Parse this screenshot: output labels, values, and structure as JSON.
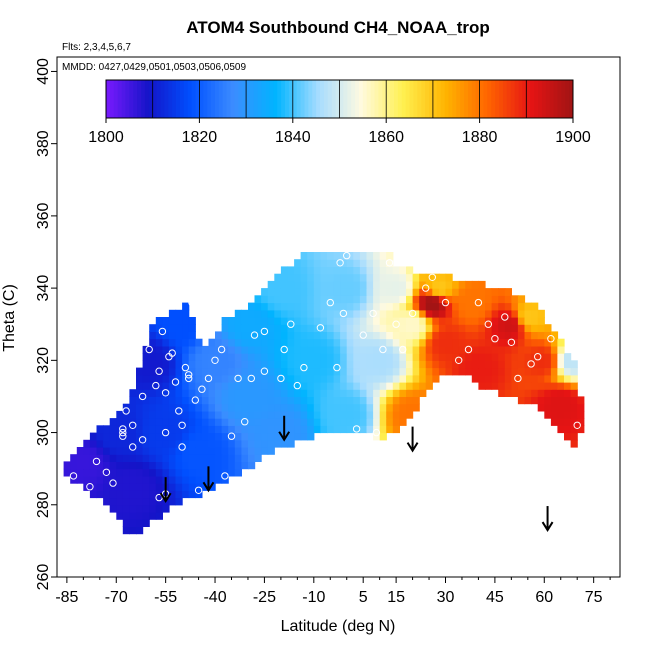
{
  "chart_data": {
    "type": "scatter",
    "title": "ATOM4 Southbound CH4_NOAA_trop",
    "flights_label": "Flts: 2,3,4,5,6,7",
    "dates_label": "MMDD: 0427,0429,0501,0503,0506,0509",
    "xlabel": "Latitude (deg N)",
    "ylabel": "Theta (C)",
    "xlim": [
      -88,
      83
    ],
    "ylim": [
      260,
      404
    ],
    "x_ticks": [
      -85,
      -70,
      -55,
      -40,
      -25,
      -10,
      5,
      15,
      30,
      45,
      60,
      75
    ],
    "x_tick_labels": [
      "-85",
      "-70",
      "-55",
      "-40",
      "-25",
      "-10",
      "5",
      "15",
      "30",
      "45",
      "60",
      "75"
    ],
    "y_ticks": [
      260,
      280,
      300,
      320,
      340,
      360,
      380,
      400
    ],
    "y_tick_labels": [
      "260",
      "280",
      "300",
      "320",
      "340",
      "360",
      "380",
      "400"
    ],
    "colorbar": {
      "min": 1800,
      "max": 1900,
      "ticks": [
        1800,
        1820,
        1840,
        1860,
        1880,
        1900
      ],
      "tick_labels": [
        "1800",
        "1820",
        "1840",
        "1860",
        "1880",
        "1900"
      ],
      "colors": [
        "#7a1aff",
        "#1414c8",
        "#0050ff",
        "#3c8cff",
        "#00b4ff",
        "#a6dcff",
        "#fffae0",
        "#fff050",
        "#ffb400",
        "#ff6400",
        "#e61414",
        "#a01414"
      ]
    },
    "field_domain_outline": [
      [
        -85,
        292
      ],
      [
        -80,
        297
      ],
      [
        -75,
        301
      ],
      [
        -68,
        306
      ],
      [
        -64,
        314
      ],
      [
        -62,
        322
      ],
      [
        -59,
        330
      ],
      [
        -53,
        334
      ],
      [
        -48,
        336
      ],
      [
        -46,
        330
      ],
      [
        -44,
        323
      ],
      [
        -37,
        331
      ],
      [
        -28,
        336
      ],
      [
        -18,
        346
      ],
      [
        -12,
        350
      ],
      [
        5,
        350
      ],
      [
        15,
        350
      ],
      [
        15,
        346
      ],
      [
        32,
        343
      ],
      [
        47,
        340
      ],
      [
        57,
        336
      ],
      [
        65,
        326
      ],
      [
        70,
        318
      ],
      [
        72,
        302
      ],
      [
        70,
        296
      ],
      [
        63,
        303
      ],
      [
        56,
        308
      ],
      [
        48,
        310
      ],
      [
        41,
        313
      ],
      [
        35,
        317
      ],
      [
        28,
        316
      ],
      [
        18,
        302
      ],
      [
        11,
        298
      ],
      [
        4,
        300
      ],
      [
        -5,
        301
      ],
      [
        -12,
        298
      ],
      [
        -20,
        296
      ],
      [
        -30,
        290
      ],
      [
        -42,
        284
      ],
      [
        -52,
        280
      ],
      [
        -58,
        276
      ],
      [
        -63,
        272
      ],
      [
        -67,
        272
      ],
      [
        -72,
        280
      ],
      [
        -79,
        284
      ],
      [
        -86,
        288
      ]
    ],
    "field_points": [
      {
        "lat": -80,
        "theta": 292,
        "ch4": 1806
      },
      {
        "lat": -70,
        "theta": 300,
        "ch4": 1812
      },
      {
        "lat": -65,
        "theta": 285,
        "ch4": 1808
      },
      {
        "lat": -60,
        "theta": 320,
        "ch4": 1810
      },
      {
        "lat": -55,
        "theta": 300,
        "ch4": 1815
      },
      {
        "lat": -50,
        "theta": 330,
        "ch4": 1818
      },
      {
        "lat": -45,
        "theta": 295,
        "ch4": 1819
      },
      {
        "lat": -40,
        "theta": 320,
        "ch4": 1826
      },
      {
        "lat": -30,
        "theta": 310,
        "ch4": 1830
      },
      {
        "lat": -30,
        "theta": 330,
        "ch4": 1834
      },
      {
        "lat": -20,
        "theta": 300,
        "ch4": 1829
      },
      {
        "lat": -20,
        "theta": 340,
        "ch4": 1840
      },
      {
        "lat": -10,
        "theta": 320,
        "ch4": 1838
      },
      {
        "lat": 0,
        "theta": 340,
        "ch4": 1842
      },
      {
        "lat": 0,
        "theta": 305,
        "ch4": 1840
      },
      {
        "lat": 10,
        "theta": 320,
        "ch4": 1846
      },
      {
        "lat": 15,
        "theta": 340,
        "ch4": 1852
      },
      {
        "lat": 20,
        "theta": 305,
        "ch4": 1880
      },
      {
        "lat": 20,
        "theta": 330,
        "ch4": 1856
      },
      {
        "lat": 28,
        "theta": 340,
        "ch4": 1870
      },
      {
        "lat": 30,
        "theta": 325,
        "ch4": 1888
      },
      {
        "lat": 38,
        "theta": 336,
        "ch4": 1880
      },
      {
        "lat": 40,
        "theta": 318,
        "ch4": 1890
      },
      {
        "lat": 50,
        "theta": 330,
        "ch4": 1894
      },
      {
        "lat": 55,
        "theta": 332,
        "ch4": 1870
      },
      {
        "lat": 60,
        "theta": 320,
        "ch4": 1888
      },
      {
        "lat": 65,
        "theta": 308,
        "ch4": 1892
      },
      {
        "lat": 68,
        "theta": 320,
        "ch4": 1848
      },
      {
        "lat": 26,
        "theta": 336,
        "ch4": 1900
      }
    ],
    "obs_points": [
      [
        -83,
        288
      ],
      [
        -78,
        285
      ],
      [
        -76,
        292
      ],
      [
        -73,
        289
      ],
      [
        -71,
        286
      ],
      [
        -68,
        301
      ],
      [
        -68,
        300
      ],
      [
        -68,
        299
      ],
      [
        -67,
        306
      ],
      [
        -65,
        302
      ],
      [
        -65,
        296
      ],
      [
        -62,
        310
      ],
      [
        -62,
        298
      ],
      [
        -60,
        323
      ],
      [
        -58,
        313
      ],
      [
        -57,
        317
      ],
      [
        -57,
        282
      ],
      [
        -56,
        328
      ],
      [
        -55,
        311
      ],
      [
        -55,
        300
      ],
      [
        -55,
        283
      ],
      [
        -54,
        321
      ],
      [
        -53,
        322
      ],
      [
        -52,
        314
      ],
      [
        -51,
        306
      ],
      [
        -50,
        302
      ],
      [
        -50,
        296
      ],
      [
        -49,
        318
      ],
      [
        -48,
        316
      ],
      [
        -48,
        315
      ],
      [
        -47,
        336
      ],
      [
        -46,
        309
      ],
      [
        -45,
        284
      ],
      [
        -44,
        312
      ],
      [
        -42,
        315
      ],
      [
        -40,
        320
      ],
      [
        -38,
        323
      ],
      [
        -37,
        288
      ],
      [
        -35,
        299
      ],
      [
        -33,
        315
      ],
      [
        -31,
        303
      ],
      [
        -29,
        315
      ],
      [
        -28,
        327
      ],
      [
        -25,
        328
      ],
      [
        -25,
        317
      ],
      [
        -22,
        289
      ],
      [
        -20,
        315
      ],
      [
        -19,
        323
      ],
      [
        -17,
        330
      ],
      [
        -15,
        313
      ],
      [
        -13,
        318
      ],
      [
        -10,
        293
      ],
      [
        -8,
        329
      ],
      [
        -5,
        336
      ],
      [
        -3,
        318
      ],
      [
        -2,
        347
      ],
      [
        -1,
        333
      ],
      [
        0,
        349
      ],
      [
        3,
        301
      ],
      [
        5,
        327
      ],
      [
        8,
        333
      ],
      [
        9,
        300
      ],
      [
        11,
        323
      ],
      [
        13,
        347
      ],
      [
        15,
        330
      ],
      [
        17,
        323
      ],
      [
        18,
        347
      ],
      [
        20,
        333
      ],
      [
        24,
        340
      ],
      [
        26,
        343
      ],
      [
        30,
        336
      ],
      [
        34,
        320
      ],
      [
        37,
        323
      ],
      [
        40,
        336
      ],
      [
        43,
        330
      ],
      [
        45,
        326
      ],
      [
        48,
        332
      ],
      [
        50,
        325
      ],
      [
        52,
        315
      ],
      [
        56,
        319
      ],
      [
        58,
        321
      ],
      [
        62,
        326
      ],
      [
        65,
        330
      ],
      [
        70,
        302
      ]
    ],
    "marker_points": [
      {
        "lat": -55,
        "theta": 281
      },
      {
        "lat": -42,
        "theta": 284
      },
      {
        "lat": -19,
        "theta": 298
      },
      {
        "lat": 20,
        "theta": 295
      },
      {
        "lat": 61,
        "theta": 273
      }
    ]
  }
}
